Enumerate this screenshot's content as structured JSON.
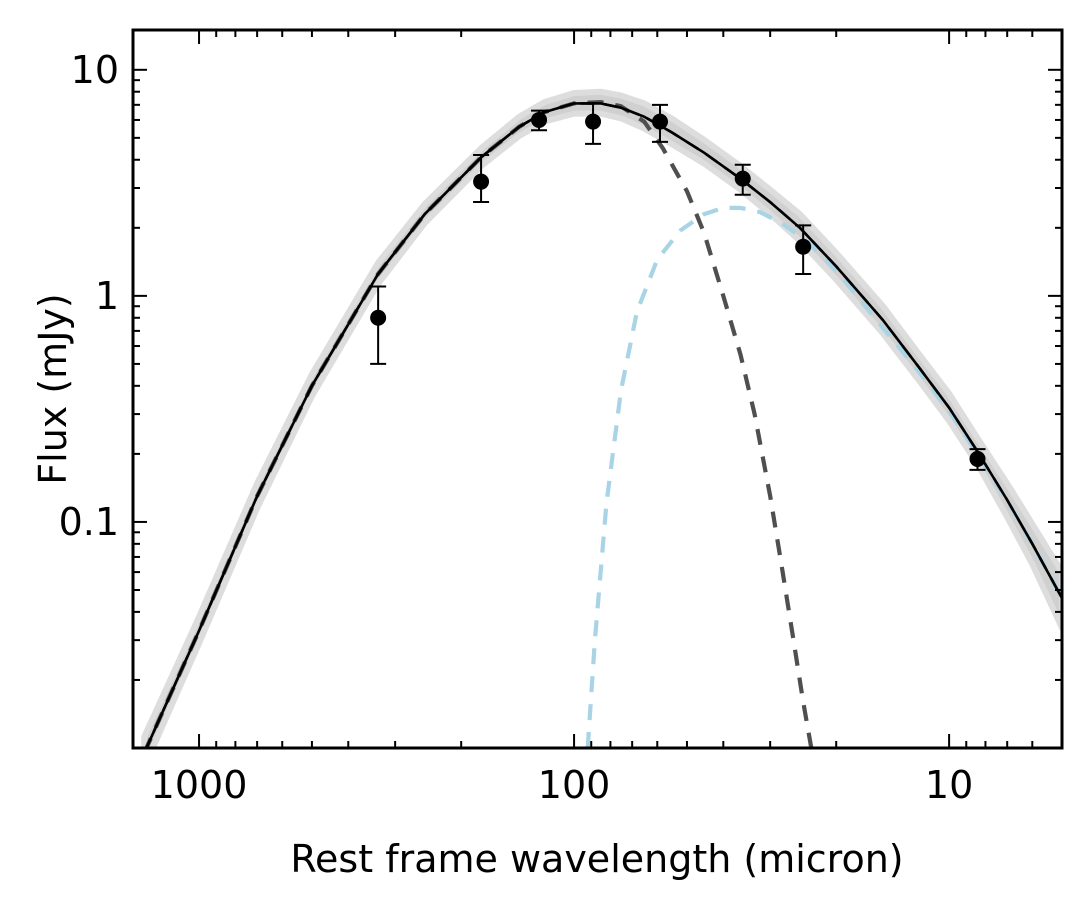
{
  "chart_data": {
    "type": "scatter",
    "xlabel": "Rest frame wavelength (micron)",
    "ylabel": "Flux (mJy)",
    "x_scale": "log",
    "y_scale": "log",
    "x_inverted": true,
    "xlim": [
      1500,
      5
    ],
    "ylim": [
      0.01,
      15
    ],
    "x_major_ticks": [
      {
        "value": 1000,
        "label": "1000"
      },
      {
        "value": 100,
        "label": "100"
      },
      {
        "value": 10,
        "label": "10"
      }
    ],
    "y_major_ticks": [
      {
        "value": 10,
        "label": "10"
      },
      {
        "value": 1,
        "label": "1"
      },
      {
        "value": 0.1,
        "label": "0.1"
      }
    ],
    "observed_points": [
      {
        "x": 333,
        "y": 0.8,
        "yerr_low": 0.3,
        "yerr_high": 0.3
      },
      {
        "x": 177,
        "y": 3.2,
        "yerr_low": 0.6,
        "yerr_high": 1.0
      },
      {
        "x": 124,
        "y": 6.0,
        "yerr_low": 0.6,
        "yerr_high": 0.6
      },
      {
        "x": 89,
        "y": 5.9,
        "yerr_low": 1.2,
        "yerr_high": 1.2
      },
      {
        "x": 59,
        "y": 5.9,
        "yerr_low": 1.1,
        "yerr_high": 1.1
      },
      {
        "x": 35.5,
        "y": 3.3,
        "yerr_low": 0.5,
        "yerr_high": 0.5
      },
      {
        "x": 24.5,
        "y": 1.65,
        "yerr_low": 0.4,
        "yerr_high": 0.4
      },
      {
        "x": 8.4,
        "y": 0.19,
        "yerr_low": 0.02,
        "yerr_high": 0.02
      }
    ],
    "series": [
      {
        "name": "total_fit",
        "style": "solid",
        "color": "#000000",
        "x": [
          1400,
          1000,
          700,
          500,
          333,
          250,
          177,
          140,
          120,
          100,
          85,
          75,
          65,
          55,
          45,
          36,
          30,
          25,
          20,
          15,
          12,
          10,
          8.4,
          7,
          6,
          5
        ],
        "y": [
          0.0095,
          0.033,
          0.13,
          0.4,
          1.25,
          2.3,
          4.1,
          5.6,
          6.5,
          7.1,
          7.1,
          6.8,
          6.2,
          5.3,
          4.3,
          3.3,
          2.6,
          2.0,
          1.35,
          0.78,
          0.48,
          0.32,
          0.205,
          0.125,
          0.08,
          0.046
        ]
      },
      {
        "name": "total_fit_dashed",
        "style": "dashed",
        "color": "#000000",
        "x": [
          1400,
          1000,
          700,
          500,
          333,
          250,
          177,
          140,
          120,
          100,
          85,
          75,
          65,
          55,
          45,
          36,
          30,
          25,
          20,
          15,
          12,
          10,
          8.4,
          7,
          6,
          5
        ],
        "y": [
          0.0095,
          0.033,
          0.13,
          0.4,
          1.25,
          2.3,
          4.1,
          5.6,
          6.5,
          7.1,
          7.1,
          6.8,
          6.2,
          5.3,
          4.3,
          3.3,
          2.6,
          2.0,
          1.35,
          0.78,
          0.48,
          0.32,
          0.205,
          0.125,
          0.08,
          0.046
        ]
      },
      {
        "name": "cold_dust_component",
        "style": "dashed",
        "color": "#4f4f4f",
        "x": [
          1400,
          1000,
          700,
          500,
          333,
          250,
          177,
          140,
          120,
          100,
          85,
          75,
          65,
          58,
          50,
          45,
          40,
          36,
          33,
          30,
          28,
          26,
          24.5,
          23.3
        ],
        "y": [
          0.0095,
          0.033,
          0.13,
          0.4,
          1.25,
          2.3,
          4.1,
          5.6,
          6.5,
          7.1,
          7.2,
          6.9,
          5.9,
          4.5,
          2.9,
          1.9,
          1.0,
          0.55,
          0.3,
          0.13,
          0.065,
          0.03,
          0.016,
          0.01
        ]
      },
      {
        "name": "warm_dust_component",
        "style": "dashed",
        "color": "#a8d4e6",
        "x": [
          92,
          88,
          82,
          75,
          68,
          60,
          52,
          45,
          40,
          36,
          32,
          28,
          24,
          20,
          16,
          12,
          10,
          8.4,
          7,
          6,
          5
        ],
        "y": [
          0.01,
          0.03,
          0.12,
          0.38,
          0.85,
          1.45,
          1.95,
          2.3,
          2.45,
          2.45,
          2.35,
          2.1,
          1.75,
          1.3,
          0.82,
          0.46,
          0.31,
          0.2,
          0.124,
          0.08,
          0.046
        ]
      }
    ],
    "uncertainty_band": {
      "name": "fit_uncertainty",
      "color": "#c8c8c8",
      "x": [
        1400,
        1000,
        700,
        500,
        333,
        250,
        177,
        140,
        120,
        100,
        85,
        75,
        65,
        55,
        45,
        36,
        30,
        25,
        20,
        15,
        12,
        10,
        8.4,
        7,
        6,
        5
      ],
      "y_low": [
        0.0082,
        0.029,
        0.115,
        0.36,
        1.13,
        2.1,
        3.75,
        5.1,
        5.9,
        6.4,
        6.4,
        6.1,
        5.5,
        4.7,
        3.85,
        2.95,
        2.3,
        1.75,
        1.18,
        0.68,
        0.42,
        0.28,
        0.18,
        0.105,
        0.065,
        0.034
      ],
      "y_high": [
        0.0112,
        0.038,
        0.148,
        0.45,
        1.4,
        2.55,
        4.5,
        6.2,
        7.2,
        7.9,
        8.0,
        7.7,
        7.1,
        6.1,
        4.9,
        3.75,
        2.95,
        2.3,
        1.55,
        0.9,
        0.55,
        0.37,
        0.235,
        0.148,
        0.098,
        0.06
      ]
    }
  }
}
